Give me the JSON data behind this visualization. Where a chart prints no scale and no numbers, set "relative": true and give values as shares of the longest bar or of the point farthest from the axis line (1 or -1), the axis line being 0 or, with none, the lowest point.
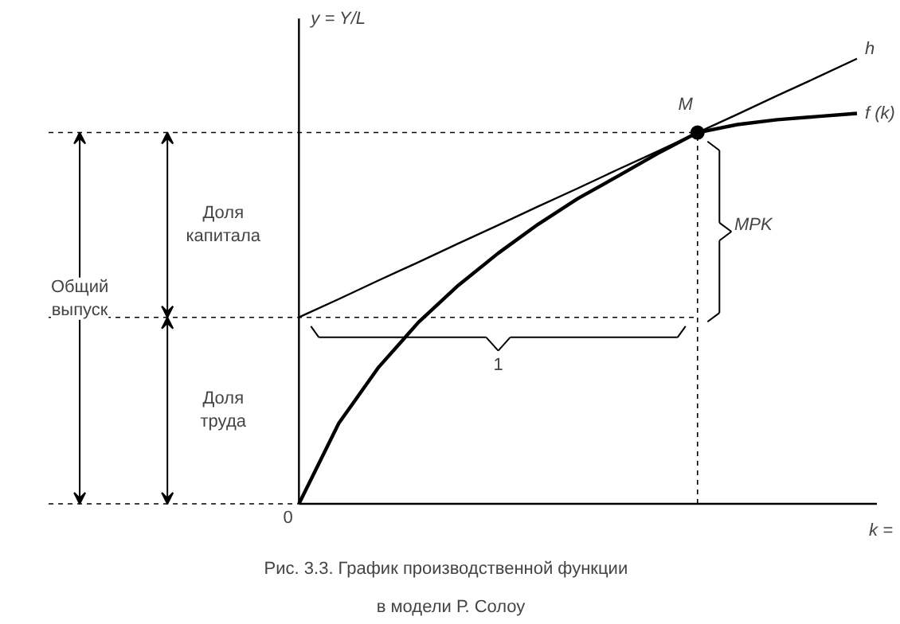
{
  "chart_data": {
    "type": "line",
    "relative": true,
    "title": "Рис. 3.3.   График производственной функции\nв модели Р. Солоу",
    "xlabel": "k =",
    "ylabel": "y = Y/L",
    "categories": [
      null,
      null,
      null,
      null,
      null,
      null,
      null,
      null,
      null,
      null,
      null,
      null,
      null,
      null,
      null
    ],
    "series": [
      {
        "name": "h",
        "color": "#000000",
        "values": [
          0.419,
          0.46,
          0.502,
          0.543,
          0.585,
          0.626,
          0.668,
          0.709,
          0.751,
          0.792,
          0.834,
          0.875,
          0.917,
          0.958,
          1
        ]
      },
      {
        "name": "f (k)",
        "color": "#000000",
        "values": [
          0,
          0.181,
          0.307,
          0.408,
          0.491,
          0.563,
          0.628,
          0.686,
          0.736,
          0.787,
          0.834,
          0.852,
          0.863,
          0.87,
          0.877
        ]
      }
    ],
    "ref_lines": [
      {
        "axis": "y",
        "value": 0.834,
        "line_style": "dashed"
      },
      {
        "axis": "y",
        "value": 0.419,
        "line_style": "dashed"
      }
    ],
    "annotations": [
      "0",
      "M",
      "MPK",
      "1",
      "Доля\nкапитала",
      "Общий\nвыпуск",
      "Доля\nтруда"
    ],
    "line_style": "solid"
  }
}
